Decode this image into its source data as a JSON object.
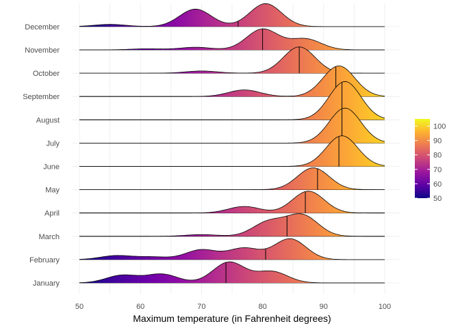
{
  "chart_data": {
    "type": "ridgeline",
    "xlabel": "Maximum temperature (in Fahrenheit degrees)",
    "ylabel": "",
    "xlim": [
      50,
      100
    ],
    "x_ticks": [
      50,
      60,
      70,
      80,
      90,
      100
    ],
    "grid": true,
    "legend": {
      "placement": "right",
      "type": "colorbar",
      "title": "",
      "range": [
        50,
        105
      ],
      "ticks": [
        "50",
        "60",
        "70",
        "80",
        "90",
        "100"
      ],
      "colors": [
        "#0d0887",
        "#5c01a6",
        "#9c179e",
        "#cc4778",
        "#ed7953",
        "#fdb42f",
        "#f0f921"
      ]
    },
    "series": [
      {
        "name": "January",
        "median": 74,
        "peaks": [
          [
            57,
            0.35
          ],
          [
            63.5,
            0.4
          ],
          [
            74.5,
            0.95
          ],
          [
            81.5,
            0.52
          ]
        ]
      },
      {
        "name": "February",
        "median": 80.5,
        "peaks": [
          [
            56,
            0.18
          ],
          [
            62,
            0.12
          ],
          [
            70,
            0.45
          ],
          [
            77,
            0.52
          ],
          [
            84.5,
            0.95
          ]
        ]
      },
      {
        "name": "March",
        "median": 84,
        "peaks": [
          [
            70,
            0.08
          ],
          [
            81,
            0.65
          ],
          [
            86.5,
            0.95
          ]
        ]
      },
      {
        "name": "April",
        "median": 87,
        "peaks": [
          [
            77,
            0.3
          ],
          [
            87.5,
            1.0
          ]
        ]
      },
      {
        "name": "May",
        "median": 89,
        "peaks": [
          [
            88.3,
            1.0
          ]
        ]
      },
      {
        "name": "June",
        "median": 92.5,
        "peaks": [
          [
            93,
            1.4
          ]
        ]
      },
      {
        "name": "July",
        "median": 93,
        "peaks": [
          [
            93.5,
            1.6
          ]
        ]
      },
      {
        "name": "August",
        "median": 93,
        "peaks": [
          [
            93.5,
            1.75
          ]
        ]
      },
      {
        "name": "September",
        "median": 92,
        "peaks": [
          [
            77,
            0.3
          ],
          [
            92.5,
            1.4
          ]
        ]
      },
      {
        "name": "October",
        "median": 86,
        "peaks": [
          [
            70,
            0.1
          ],
          [
            86,
            1.2
          ]
        ]
      },
      {
        "name": "November",
        "median": 80,
        "peaks": [
          [
            61,
            0.05
          ],
          [
            69,
            0.12
          ],
          [
            80,
            0.95
          ],
          [
            87,
            0.5
          ]
        ]
      },
      {
        "name": "December",
        "median": 76,
        "peaks": [
          [
            55,
            0.1
          ],
          [
            69,
            0.8
          ],
          [
            80.5,
            1.05
          ]
        ]
      }
    ]
  }
}
